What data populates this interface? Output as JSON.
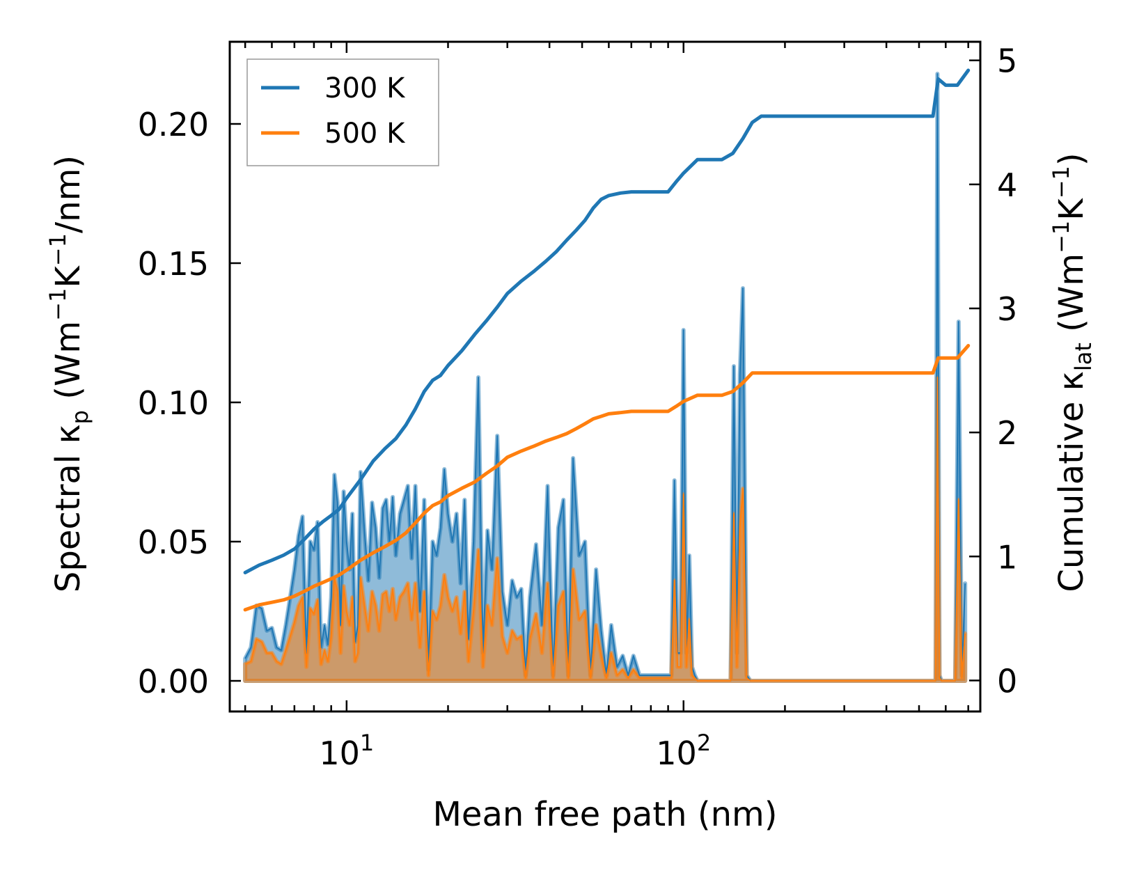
{
  "chart_data": {
    "type": "line",
    "xscale": "log",
    "xlim": [
      4.5,
      760
    ],
    "ylim": [
      -0.011,
      0.2295
    ],
    "y2lim": [
      -0.25,
      5.15
    ],
    "xlabel": "Mean free path (nm)",
    "ylabel_left": {
      "main": "Spectral κ",
      "sub": "p",
      "unit_a": " (Wm",
      "sup_a": "−1",
      "unit_b": "K",
      "sup_b": "−1",
      "unit_c": "/nm)"
    },
    "ylabel_right": {
      "main": "Cumulative κ",
      "sub": "lat",
      "unit_a": " (Wm",
      "sup_a": "−1",
      "unit_b": "K",
      "sup_b": "−1",
      "unit_c": ")"
    },
    "x_major_ticks": [
      {
        "value": 10,
        "base": "10",
        "exp": "1"
      },
      {
        "value": 100,
        "base": "10",
        "exp": "2"
      }
    ],
    "y_ticks": [
      {
        "value": 0.0,
        "label": "0.00"
      },
      {
        "value": 0.05,
        "label": "0.05"
      },
      {
        "value": 0.1,
        "label": "0.10"
      },
      {
        "value": 0.15,
        "label": "0.15"
      },
      {
        "value": 0.2,
        "label": "0.20"
      }
    ],
    "y2_ticks": [
      {
        "value": 0,
        "label": "0"
      },
      {
        "value": 1,
        "label": "1"
      },
      {
        "value": 2,
        "label": "2"
      },
      {
        "value": 3,
        "label": "3"
      },
      {
        "value": 4,
        "label": "4"
      },
      {
        "value": 5,
        "label": "5"
      }
    ],
    "legend": {
      "position": "upper-left",
      "entries": [
        {
          "label": "300 K",
          "color": "#1f77b4"
        },
        {
          "label": "500 K",
          "color": "#ff7f0e"
        }
      ]
    },
    "series": [
      {
        "name": "300 K",
        "color": "#1f77b4",
        "fill_color": "#1f77b4",
        "spectral": {
          "x": [
            5,
            5.2,
            5.4,
            5.6,
            5.8,
            6,
            6.2,
            6.4,
            6.6,
            6.8,
            7,
            7.2,
            7.4,
            7.6,
            7.8,
            8,
            8.2,
            8.4,
            8.6,
            8.8,
            9,
            9.2,
            9.4,
            9.6,
            9.8,
            10,
            10.2,
            10.4,
            10.6,
            10.8,
            11,
            11.3,
            11.6,
            11.9,
            12.2,
            12.5,
            12.8,
            13.1,
            13.4,
            13.7,
            14,
            14.4,
            14.8,
            15.2,
            15.6,
            16,
            16.5,
            17,
            17.5,
            18,
            18.5,
            19,
            19.5,
            20,
            20.6,
            21.2,
            21.8,
            22.4,
            23,
            23.8,
            24.6,
            25.4,
            26.2,
            27,
            28,
            29,
            30,
            31,
            32,
            33,
            34,
            35,
            36.5,
            38,
            39.5,
            41,
            42.5,
            44,
            45.5,
            47,
            49,
            51,
            53,
            55,
            57,
            59,
            61,
            63.5,
            66,
            68.5,
            71,
            74,
            77,
            92,
            94,
            96,
            98,
            100,
            102,
            104,
            106,
            108,
            110,
            138,
            141,
            144,
            147,
            150,
            154,
            158,
            162,
            166,
            560,
            567,
            575,
            583,
            591,
            640,
            655,
            670,
            685
          ],
          "y": [
            0.008,
            0.012,
            0.027,
            0.026,
            0.018,
            0.019,
            0.012,
            0.011,
            0.02,
            0.03,
            0.04,
            0.052,
            0.059,
            0.01,
            0.05,
            0.047,
            0.057,
            0.012,
            0.02,
            0.013,
            0.03,
            0.074,
            0.064,
            0.02,
            0.068,
            0.05,
            0.04,
            0.06,
            0.014,
            0.02,
            0.075,
            0.054,
            0.036,
            0.064,
            0.055,
            0.037,
            0.062,
            0.065,
            0.05,
            0.066,
            0.045,
            0.06,
            0.065,
            0.07,
            0.044,
            0.07,
            0.025,
            0.065,
            0.004,
            0.05,
            0.045,
            0.055,
            0.076,
            0.06,
            0.05,
            0.06,
            0.035,
            0.065,
            0.015,
            0.05,
            0.109,
            0.01,
            0.054,
            0.04,
            0.088,
            0.032,
            0.02,
            0.036,
            0.03,
            0.033,
            0.002,
            0.03,
            0.049,
            0.02,
            0.07,
            0.002,
            0.055,
            0.065,
            0.002,
            0.08,
            0.045,
            0.05,
            0.002,
            0.04,
            0.018,
            0.002,
            0.02,
            0.005,
            0.009,
            0.002,
            0.009,
            0.002,
            0.002,
            0.002,
            0.072,
            0.01,
            0.01,
            0.126,
            0.01,
            0.045,
            0.005,
            0.002,
            0,
            0,
            0.113,
            0.01,
            0.11,
            0.141,
            0.002,
            0,
            0,
            0,
            0,
            0.218,
            0.002,
            0,
            0,
            0,
            0.129,
            0.002,
            0.035
          ]
        },
        "cumulative": {
          "x": [
            5,
            5.5,
            6,
            6.5,
            7,
            7.5,
            8,
            8.5,
            9,
            9.5,
            10,
            11,
            12,
            13,
            14,
            15,
            16,
            17,
            18,
            19,
            20,
            22,
            24,
            26,
            28,
            30,
            33,
            36,
            39,
            42,
            45,
            48,
            51,
            54,
            57,
            60,
            65,
            70,
            80,
            90,
            95,
            100,
            110,
            130,
            140,
            150,
            160,
            170,
            550,
            570,
            600,
            650,
            700
          ],
          "y": [
            0.87,
            0.93,
            0.97,
            1.01,
            1.06,
            1.14,
            1.22,
            1.28,
            1.33,
            1.38,
            1.47,
            1.62,
            1.77,
            1.87,
            1.95,
            2.06,
            2.19,
            2.33,
            2.42,
            2.46,
            2.54,
            2.66,
            2.79,
            2.9,
            3.01,
            3.12,
            3.22,
            3.3,
            3.38,
            3.46,
            3.55,
            3.63,
            3.71,
            3.81,
            3.88,
            3.91,
            3.93,
            3.94,
            3.94,
            3.94,
            4.02,
            4.09,
            4.2,
            4.2,
            4.25,
            4.37,
            4.5,
            4.55,
            4.55,
            4.85,
            4.8,
            4.8,
            4.92
          ]
        }
      },
      {
        "name": "500 K",
        "color": "#ff7f0e",
        "fill_color": "#ff7f0e",
        "spectral": {
          "x": [
            5,
            5.2,
            5.4,
            5.6,
            5.8,
            6,
            6.2,
            6.4,
            6.6,
            6.8,
            7,
            7.2,
            7.4,
            7.6,
            7.8,
            8,
            8.2,
            8.4,
            8.6,
            8.8,
            9,
            9.2,
            9.4,
            9.6,
            9.8,
            10,
            10.2,
            10.4,
            10.6,
            10.8,
            11,
            11.3,
            11.6,
            11.9,
            12.2,
            12.5,
            12.8,
            13.1,
            13.4,
            13.7,
            14,
            14.4,
            14.8,
            15.2,
            15.6,
            16,
            16.5,
            17,
            17.5,
            18,
            18.5,
            19,
            19.5,
            20,
            20.6,
            21.2,
            21.8,
            22.4,
            23,
            23.8,
            24.6,
            25.4,
            26.2,
            27,
            28,
            29,
            30,
            31,
            32,
            33,
            34,
            35,
            36.5,
            38,
            39.5,
            41,
            42.5,
            44,
            45.5,
            47,
            49,
            51,
            53,
            55,
            57,
            59,
            61,
            63.5,
            66,
            68.5,
            71,
            74,
            77,
            92,
            94,
            96,
            98,
            100,
            102,
            104,
            106,
            108,
            110,
            138,
            141,
            144,
            147,
            150,
            154,
            158,
            162,
            166,
            560,
            567,
            575,
            583,
            591,
            640,
            655,
            670,
            685
          ],
          "y": [
            0.006,
            0.007,
            0.015,
            0.014,
            0.01,
            0.01,
            0.007,
            0.006,
            0.011,
            0.016,
            0.021,
            0.027,
            0.03,
            0.005,
            0.026,
            0.024,
            0.029,
            0.006,
            0.011,
            0.007,
            0.016,
            0.037,
            0.032,
            0.01,
            0.034,
            0.025,
            0.02,
            0.03,
            0.007,
            0.01,
            0.037,
            0.027,
            0.018,
            0.032,
            0.027,
            0.018,
            0.031,
            0.032,
            0.025,
            0.033,
            0.022,
            0.03,
            0.032,
            0.035,
            0.022,
            0.035,
            0.012,
            0.032,
            0.002,
            0.025,
            0.022,
            0.027,
            0.038,
            0.03,
            0.025,
            0.03,
            0.017,
            0.032,
            0.007,
            0.025,
            0.047,
            0.005,
            0.027,
            0.02,
            0.044,
            0.016,
            0.01,
            0.018,
            0.015,
            0.016,
            0.001,
            0.015,
            0.024,
            0.01,
            0.035,
            0.001,
            0.027,
            0.032,
            0.001,
            0.04,
            0.022,
            0.025,
            0.001,
            0.02,
            0.009,
            0.001,
            0.01,
            0.002,
            0.004,
            0.001,
            0.004,
            0.001,
            0.001,
            0.001,
            0.036,
            0.005,
            0.005,
            0.067,
            0.005,
            0.022,
            0.002,
            0.001,
            0,
            0,
            0.06,
            0.005,
            0.055,
            0.069,
            0.001,
            0,
            0,
            0,
            0,
            0.109,
            0.001,
            0,
            0,
            0,
            0.065,
            0.001,
            0.017
          ]
        },
        "cumulative": {
          "x": [
            5,
            5.5,
            6,
            6.5,
            7,
            7.5,
            8,
            8.5,
            9,
            9.5,
            10,
            11,
            12,
            13,
            14,
            15,
            16,
            17,
            18,
            19,
            20,
            22,
            24,
            26,
            28,
            30,
            33,
            36,
            39,
            42,
            45,
            48,
            51,
            54,
            57,
            60,
            65,
            70,
            80,
            90,
            95,
            100,
            110,
            130,
            140,
            150,
            160,
            170,
            550,
            570,
            600,
            650,
            700
          ],
          "y": [
            0.57,
            0.61,
            0.63,
            0.65,
            0.68,
            0.72,
            0.76,
            0.79,
            0.82,
            0.85,
            0.89,
            0.97,
            1.03,
            1.08,
            1.13,
            1.19,
            1.27,
            1.35,
            1.41,
            1.44,
            1.49,
            1.55,
            1.6,
            1.67,
            1.73,
            1.8,
            1.85,
            1.89,
            1.93,
            1.96,
            1.99,
            2.03,
            2.07,
            2.11,
            2.13,
            2.15,
            2.16,
            2.17,
            2.17,
            2.17,
            2.21,
            2.25,
            2.3,
            2.3,
            2.33,
            2.4,
            2.48,
            2.48,
            2.48,
            2.6,
            2.6,
            2.6,
            2.7
          ]
        }
      }
    ]
  }
}
